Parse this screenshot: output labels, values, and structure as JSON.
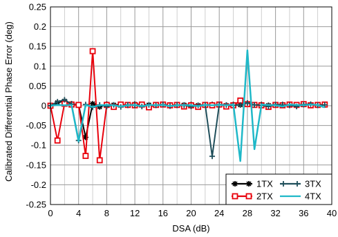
{
  "chart_data": {
    "type": "line",
    "title": "",
    "xlabel": "DSA (dB)",
    "ylabel": "Calibrated Differential Phase Error (deg)",
    "xlim": [
      0,
      40
    ],
    "ylim": [
      -0.25,
      0.25
    ],
    "xticks": [
      0,
      4,
      8,
      12,
      16,
      20,
      24,
      28,
      32,
      36,
      40
    ],
    "yticks": [
      0.25,
      0.2,
      0.15,
      0.1,
      0.05,
      0,
      -0.05,
      -0.1,
      -0.15,
      -0.2,
      -0.25
    ],
    "ytick_labels": [
      "0.25",
      "0.2",
      "0.15",
      "0.1",
      "0.05",
      "0",
      "-0.05",
      "-0.1",
      "-0.15",
      "-0.2",
      "-0.25"
    ],
    "grid": true,
    "legend_position": "bottom-right",
    "x": [
      0,
      1,
      2,
      3,
      4,
      5,
      6,
      7,
      8,
      9,
      10,
      11,
      12,
      13,
      14,
      15,
      16,
      17,
      18,
      19,
      20,
      21,
      22,
      23,
      24,
      25,
      26,
      27,
      28,
      29,
      30,
      31,
      32,
      33,
      34,
      35,
      36,
      37,
      38,
      39
    ],
    "series": [
      {
        "name": "1TX",
        "color": "#000000",
        "marker": "star",
        "values": [
          0,
          0.008,
          0.012,
          0.005,
          0.002,
          -0.08,
          0.005,
          -0.003,
          0.004,
          0.002,
          0.003,
          0.001,
          0.004,
          0.003,
          0.002,
          0.001,
          0.003,
          0.002,
          0.001,
          0.002,
          0.003,
          0.001,
          0.002,
          0.003,
          0.002,
          0.001,
          0.003,
          0.002,
          0.004,
          0.002,
          0.003,
          0.001,
          0.002,
          0.003,
          0.001,
          0.002,
          0.003,
          0.002,
          0.001,
          0.003
        ]
      },
      {
        "name": "2TX",
        "color": "#e8000b",
        "marker": "square",
        "values": [
          0,
          -0.088,
          0.005,
          0.003,
          0.002,
          -0.127,
          0.138,
          -0.138,
          0.002,
          -0.003,
          0.003,
          0.002,
          0.001,
          0.003,
          -0.004,
          0.002,
          0.003,
          0.001,
          0.002,
          -0.002,
          0.001,
          -0.003,
          0.002,
          0.001,
          0.003,
          -0.002,
          0.001,
          0.013,
          0.004,
          0.002,
          0.001,
          -0.003,
          0.002,
          0.001,
          0.003,
          0.002,
          0.004,
          0.001,
          0.002,
          0.003
        ]
      },
      {
        "name": "3TX",
        "color": "#1f4e5a",
        "marker": "plus",
        "values": [
          0,
          0.01,
          0.015,
          0.004,
          -0.088,
          0.003,
          -0.004,
          0.002,
          -0.002,
          0.002,
          -0.003,
          0.002,
          0.001,
          -0.002,
          0.002,
          0.001,
          0.003,
          -0.001,
          0.002,
          0.001,
          -0.002,
          0.001,
          0.002,
          -0.128,
          0.003,
          0.002,
          0.001,
          0.002,
          0.007,
          0.002,
          0.001,
          -0.002,
          0.003,
          0.002,
          0.001,
          -0.002,
          0.003,
          0.004,
          0.001,
          0.002
        ]
      },
      {
        "name": "4TX",
        "color": "#1fb8c8",
        "marker": "none",
        "values": [
          0,
          0.002,
          0.001,
          0.002,
          -0.09,
          0.002,
          -0.003,
          0.001,
          0.002,
          0.001,
          -0.002,
          0.001,
          0.002,
          -0.001,
          0.002,
          0.001,
          0.002,
          -0.001,
          0.001,
          0.002,
          0.001,
          -0.001,
          0.002,
          0.001,
          0.002,
          0.001,
          0.003,
          -0.14,
          0.14,
          -0.11,
          0.003,
          0.002,
          0.001,
          -0.002,
          0.003,
          0.002,
          0.001,
          0.003,
          0.002,
          -0.004
        ]
      }
    ]
  }
}
